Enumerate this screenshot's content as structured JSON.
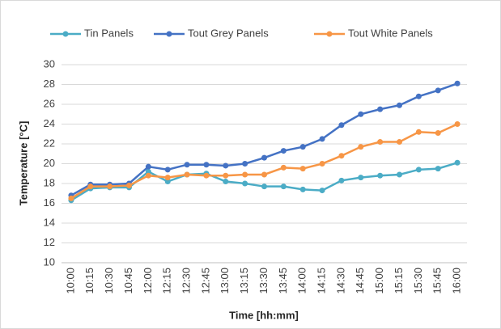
{
  "chart_data": {
    "type": "line",
    "xlabel": "Time [hh:mm]",
    "ylabel": "Temperature [°C]",
    "categories": [
      "10:00",
      "10:15",
      "10:30",
      "10:45",
      "12:00",
      "12:15",
      "12:30",
      "12:45",
      "13:00",
      "13:15",
      "13:30",
      "13:45",
      "14:00",
      "14:15",
      "14:30",
      "14:45",
      "15:00",
      "15:15",
      "15:30",
      "15:45",
      "16:00"
    ],
    "series": [
      {
        "name": "Tin Panels",
        "color": "#4bacc6",
        "values": [
          16.3,
          17.5,
          17.6,
          17.6,
          19.2,
          18.2,
          18.9,
          19.0,
          18.2,
          18.0,
          17.7,
          17.7,
          17.4,
          17.3,
          18.3,
          18.6,
          18.8,
          18.9,
          19.4,
          19.5,
          20.1
        ]
      },
      {
        "name": "Tout Grey Panels",
        "color": "#4472c4",
        "values": [
          16.8,
          17.9,
          17.9,
          18.0,
          19.7,
          19.4,
          19.9,
          19.9,
          19.8,
          20.0,
          20.6,
          21.3,
          21.7,
          22.5,
          23.9,
          25.0,
          25.5,
          25.9,
          26.8,
          27.4,
          28.1
        ]
      },
      {
        "name": "Tout White Panels",
        "color": "#f79646",
        "values": [
          16.5,
          17.7,
          17.7,
          17.8,
          18.8,
          18.6,
          18.9,
          18.8,
          18.8,
          18.9,
          18.9,
          19.6,
          19.5,
          20.0,
          20.8,
          21.7,
          22.2,
          22.2,
          23.2,
          23.1,
          24.0
        ]
      }
    ],
    "ylim": [
      10,
      30
    ],
    "yticks": [
      10,
      12,
      14,
      16,
      18,
      20,
      22,
      24,
      26,
      28,
      30
    ],
    "grid": true,
    "legend": "top"
  }
}
